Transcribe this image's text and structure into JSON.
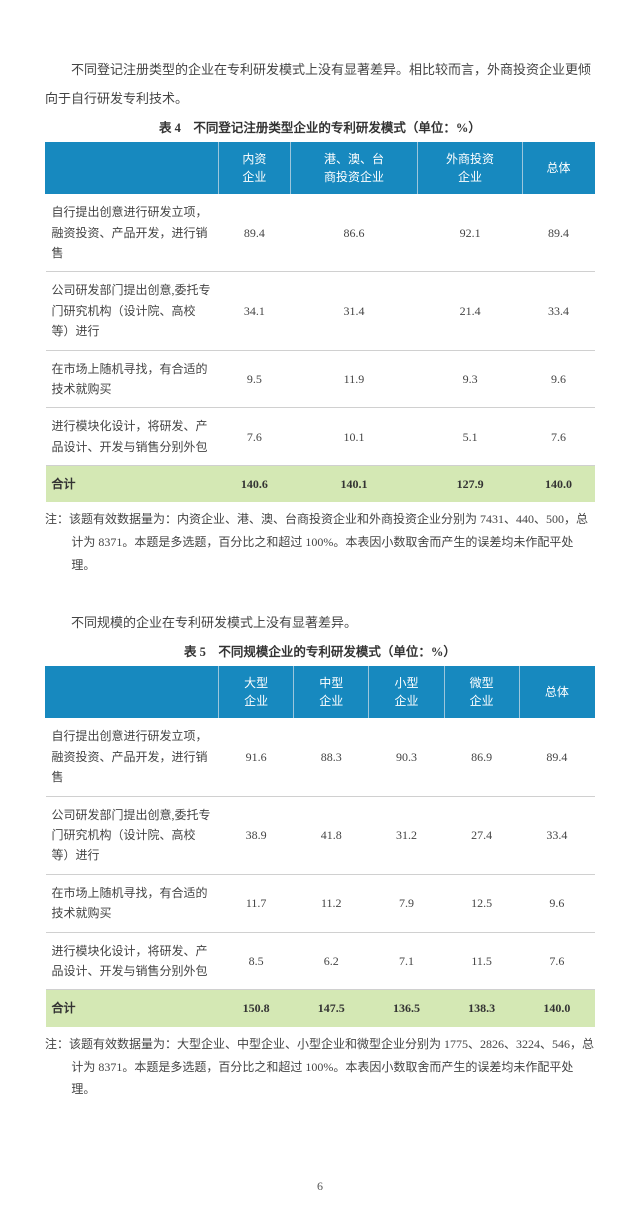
{
  "colors": {
    "header_bg": "#1789bf",
    "header_text": "#ffffff",
    "total_bg": "#d4e8b4",
    "row_border": "#d0d0d0",
    "body_text": "#444"
  },
  "para1": "不同登记注册类型的企业在专利研发模式上没有显著差异。相比较而言，外商投资企业更倾向于自行研发专利技术。",
  "table4": {
    "caption": "表 4　不同登记注册类型企业的专利研发模式（单位：%）",
    "headers": [
      "",
      "内资企业",
      "港、澳、台商投资企业",
      "外商投资企业",
      "总体"
    ],
    "rows": [
      {
        "label": "自行提出创意进行研发立项，融资投资、产品开发，进行销售",
        "vals": [
          "89.4",
          "86.6",
          "92.1",
          "89.4"
        ]
      },
      {
        "label": "公司研发部门提出创意,委托专门研究机构（设计院、高校等）进行",
        "vals": [
          "34.1",
          "31.4",
          "21.4",
          "33.4"
        ]
      },
      {
        "label": "在市场上随机寻找，有合适的技术就购买",
        "vals": [
          "9.5",
          "11.9",
          "9.3",
          "9.6"
        ]
      },
      {
        "label": "进行模块化设计，将研发、产品设计、开发与销售分别外包",
        "vals": [
          "7.6",
          "10.1",
          "5.1",
          "7.6"
        ]
      }
    ],
    "total": {
      "label": "合计",
      "vals": [
        "140.6",
        "140.1",
        "127.9",
        "140.0"
      ]
    },
    "note": "注：该题有效数据量为：内资企业、港、澳、台商投资企业和外商投资企业分别为 7431、440、500，总计为 8371。本题是多选题，百分比之和超过 100%。本表因小数取舍而产生的误差均未作配平处理。"
  },
  "para2": "不同规模的企业在专利研发模式上没有显著差异。",
  "table5": {
    "caption": "表 5　不同规模企业的专利研发模式（单位：%）",
    "headers": [
      "",
      "大型企业",
      "中型企业",
      "小型企业",
      "微型企业",
      "总体"
    ],
    "rows": [
      {
        "label": "自行提出创意进行研发立项，融资投资、产品开发，进行销售",
        "vals": [
          "91.6",
          "88.3",
          "90.3",
          "86.9",
          "89.4"
        ]
      },
      {
        "label": "公司研发部门提出创意,委托专门研究机构（设计院、高校等）进行",
        "vals": [
          "38.9",
          "41.8",
          "31.2",
          "27.4",
          "33.4"
        ]
      },
      {
        "label": "在市场上随机寻找，有合适的技术就购买",
        "vals": [
          "11.7",
          "11.2",
          "7.9",
          "12.5",
          "9.6"
        ]
      },
      {
        "label": "进行模块化设计，将研发、产品设计、开发与销售分别外包",
        "vals": [
          "8.5",
          "6.2",
          "7.1",
          "11.5",
          "7.6"
        ]
      }
    ],
    "total": {
      "label": "合计",
      "vals": [
        "150.8",
        "147.5",
        "136.5",
        "138.3",
        "140.0"
      ]
    },
    "note": "注：该题有效数据量为：大型企业、中型企业、小型企业和微型企业分别为 1775、2826、3224、546，总计为 8371。本题是多选题，百分比之和超过 100%。本表因小数取舍而产生的误差均未作配平处理。"
  },
  "pagenum": "6"
}
